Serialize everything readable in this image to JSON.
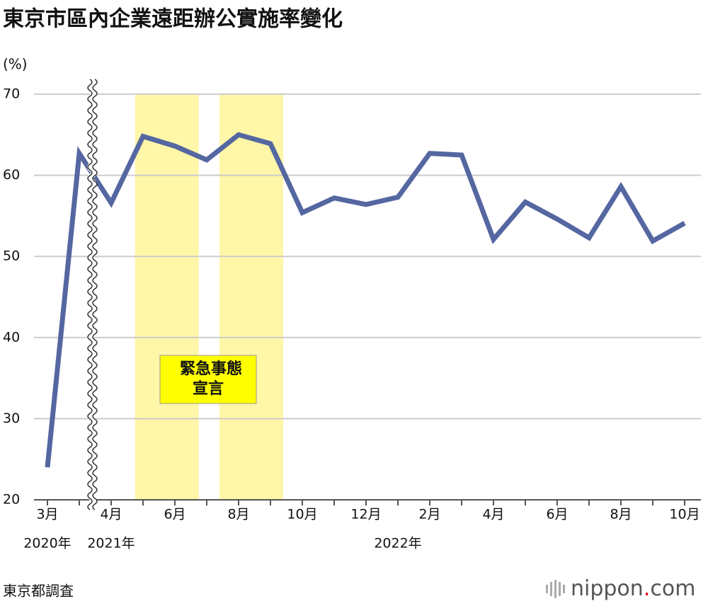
{
  "chart_data": {
    "type": "line",
    "title": "東京市區內企業遠距辦公實施率變化",
    "y_label": "(%)",
    "categories": [
      "3月",
      null,
      "4月",
      null,
      "6月",
      null,
      "8月",
      null,
      "10月",
      null,
      "12月",
      null,
      "2月",
      null,
      "4月",
      null,
      "6月",
      null,
      "8月",
      null,
      "10月"
    ],
    "year_labels": [
      "2020年",
      null,
      "2021年",
      null,
      null,
      null,
      null,
      null,
      null,
      null,
      null,
      "2022年",
      null,
      null,
      null,
      null,
      null,
      null,
      null,
      null,
      null
    ],
    "series": [
      {
        "name": "遠距辦公實施率",
        "color": "#5567a1",
        "values": [
          24.0,
          62.7,
          56.6,
          64.8,
          63.6,
          61.9,
          65.0,
          63.9,
          55.4,
          57.2,
          56.4,
          57.3,
          62.7,
          62.5,
          52.1,
          56.7,
          54.6,
          52.3,
          58.6,
          51.9,
          54.1
        ]
      }
    ],
    "ylim": [
      20,
      70
    ],
    "yticks": [
      20,
      30,
      40,
      50,
      60,
      70
    ],
    "grid": true,
    "bands": [
      [
        2.75,
        4.75
      ],
      [
        5.4,
        7.4
      ]
    ],
    "band_color": "#fff6a8",
    "annotation": [
      "緊急事態",
      "宣言"
    ],
    "source": "東京都調査",
    "logo": {
      "name": "nippon",
      "dot": ".",
      "suffix": "com"
    }
  }
}
